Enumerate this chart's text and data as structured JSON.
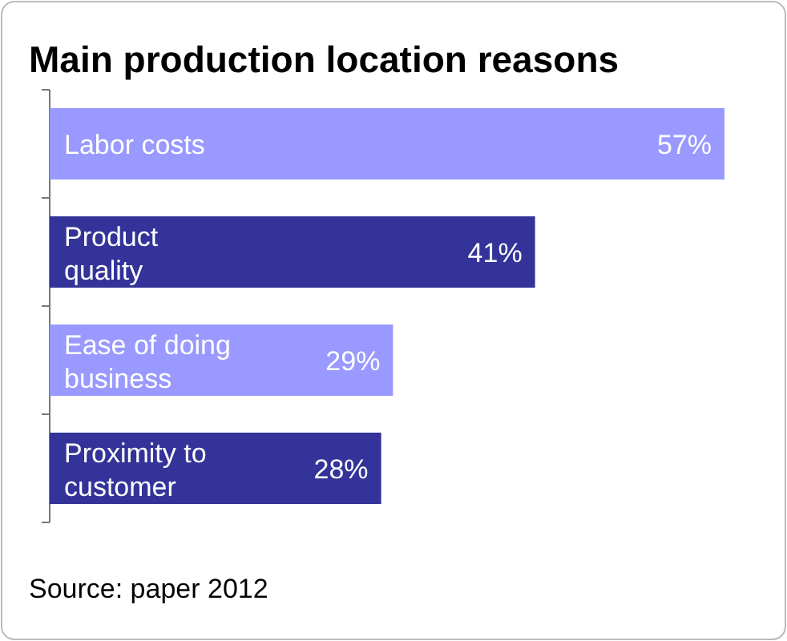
{
  "chart_data": {
    "type": "bar",
    "orientation": "horizontal",
    "title": "Main production location reasons",
    "categories": [
      "Labor costs",
      "Product quality",
      "Ease of doing business",
      "Proximity to customer"
    ],
    "values": [
      57,
      41,
      29,
      28
    ],
    "value_labels": [
      "57%",
      "41%",
      "29%",
      "28%"
    ],
    "colors": [
      "#9999ff",
      "#333399",
      "#9999ff",
      "#333399"
    ],
    "annotations": [
      "Source: paper 2012"
    ]
  }
}
